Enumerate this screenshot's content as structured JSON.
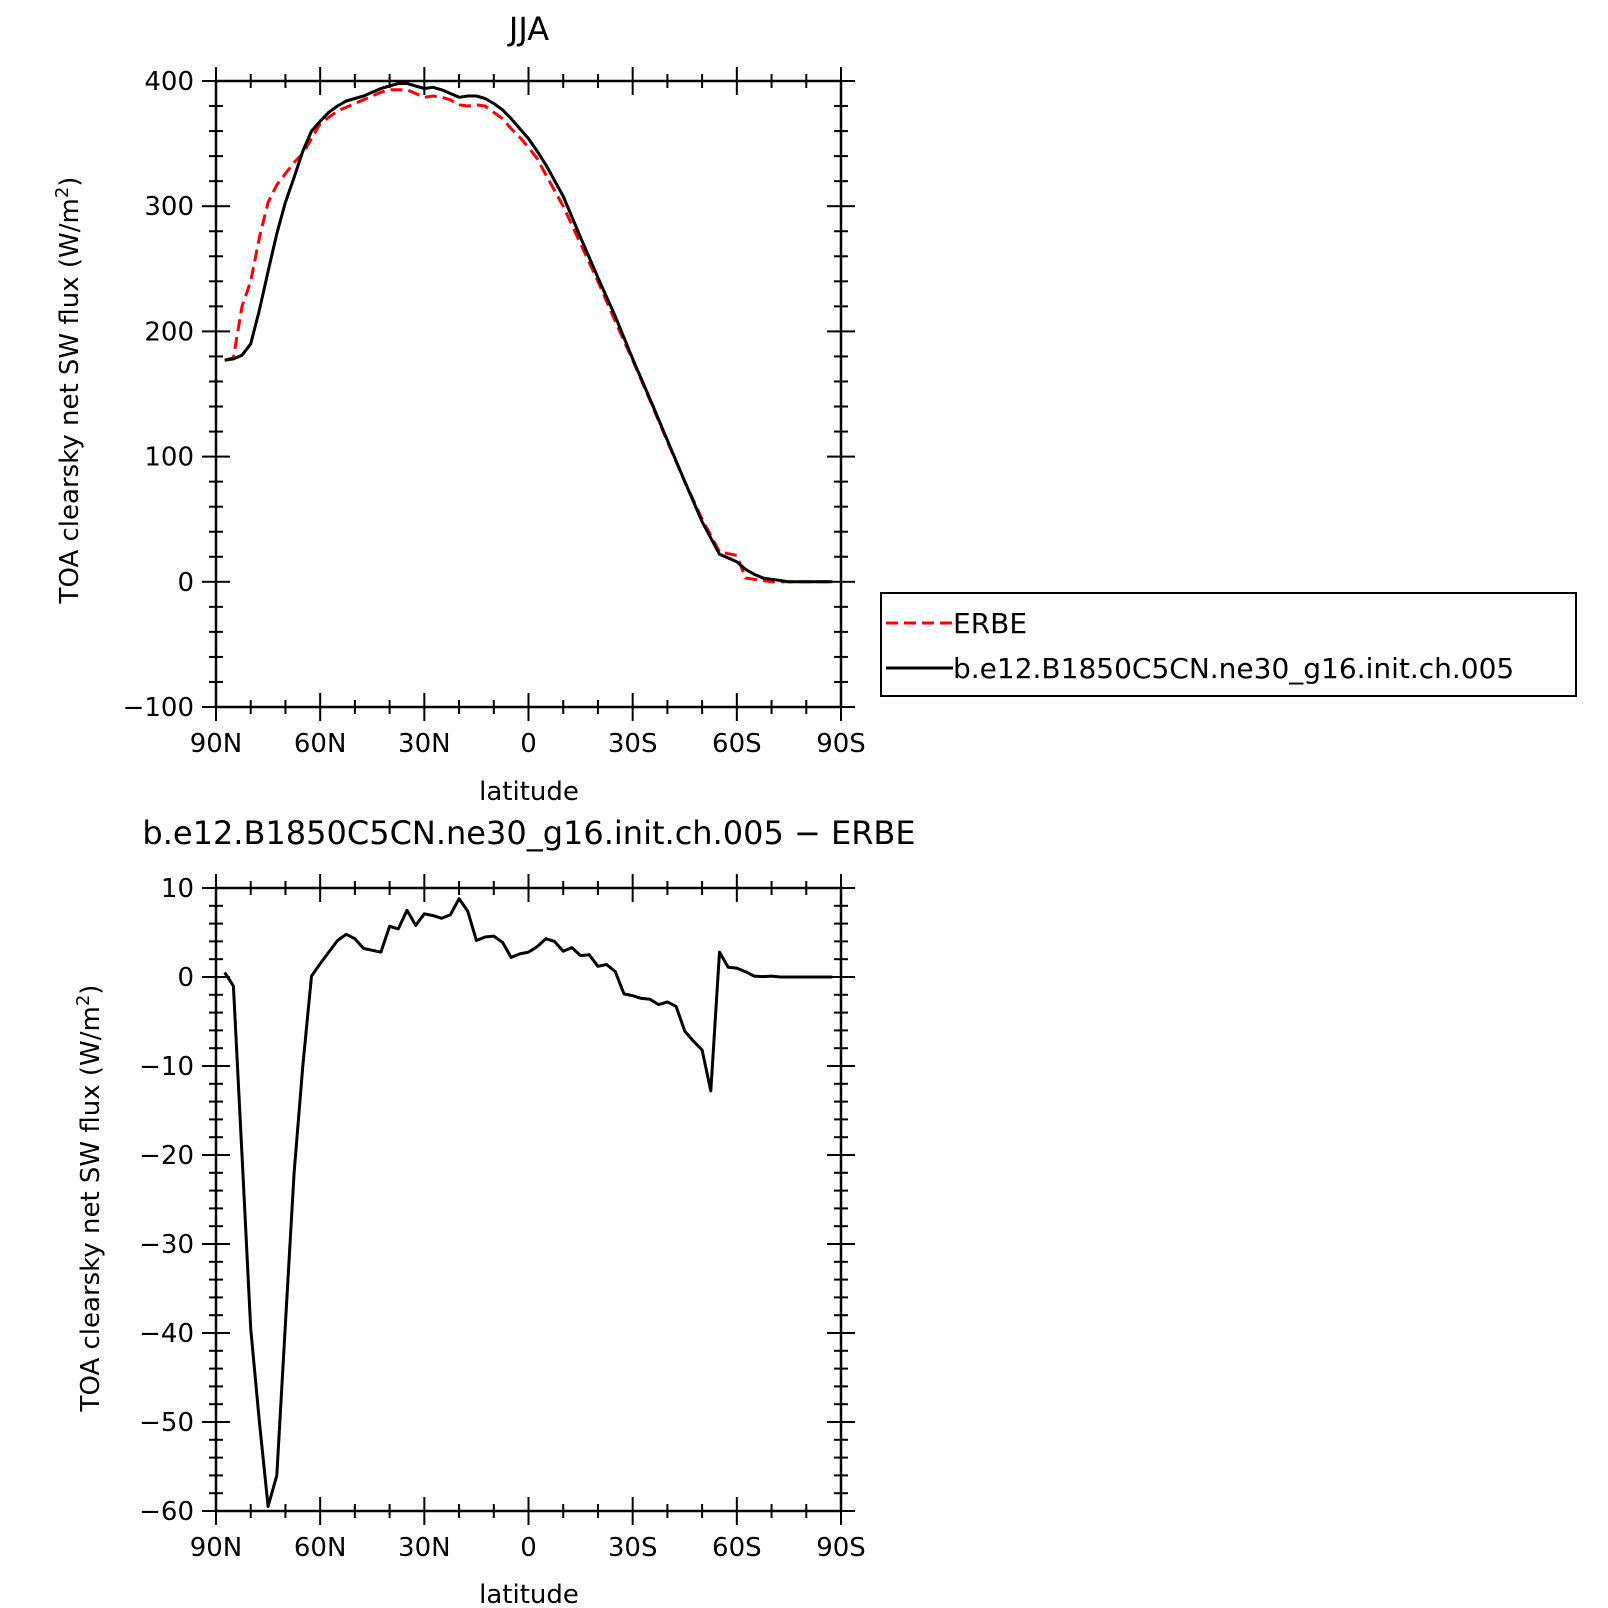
{
  "chart_data": [
    {
      "type": "line",
      "title": "JJA",
      "xlabel": "latitude",
      "ylabel": "TOA clearsky net SW flux (W/m²)",
      "xlim": [
        90,
        -90
      ],
      "ylim": [
        -100,
        400
      ],
      "x_ticks": [
        90,
        60,
        30,
        0,
        -30,
        -60,
        -90
      ],
      "x_tick_labels": [
        "90N",
        "60N",
        "30N",
        "0",
        "30S",
        "60S",
        "90S"
      ],
      "y_ticks": [
        -100,
        0,
        100,
        200,
        300,
        400
      ],
      "y_tick_labels": [
        "−100",
        "0",
        "100",
        "200",
        "300",
        "400"
      ],
      "legend": "right",
      "series": [
        {
          "name": "ERBE",
          "color": "#ff0000",
          "style": "dashed",
          "x": [
            87.5,
            85,
            82.5,
            80,
            77.5,
            75,
            72.5,
            70,
            67.5,
            65,
            62.5,
            60,
            57.5,
            55,
            52.5,
            50,
            47.5,
            45,
            42.5,
            40,
            37.5,
            35,
            32.5,
            30,
            27.5,
            25,
            22.5,
            20,
            17.5,
            15,
            12.5,
            10,
            7.5,
            5,
            2.5,
            0,
            -2.5,
            -5,
            -10,
            -15,
            -20,
            -25,
            -30,
            -35,
            -40,
            -45,
            -50,
            -55,
            -60,
            -62.5,
            -65,
            -67.5,
            -70,
            -72.5,
            -75,
            -80,
            -85,
            -87.5
          ],
          "y": [
            177,
            179,
            220,
            240,
            275,
            303,
            317,
            326,
            335,
            342,
            354,
            366,
            371,
            376,
            379,
            382,
            385,
            388,
            391,
            393,
            393,
            393,
            390,
            387,
            388,
            387,
            385,
            381,
            380,
            381,
            380,
            375,
            370,
            362,
            355,
            347,
            338,
            325,
            300,
            270,
            240,
            208,
            177,
            145,
            112,
            80,
            50,
            24,
            21,
            3,
            2,
            1,
            0,
            0,
            0,
            0,
            0,
            0
          ]
        },
        {
          "name": "b.e12.B1850C5CN.ne30_g16.init.ch.005",
          "color": "#000000",
          "style": "solid",
          "x": [
            87.5,
            85,
            82.5,
            80,
            77.5,
            75,
            72.5,
            70,
            67.5,
            65,
            62.5,
            60,
            57.5,
            55,
            52.5,
            50,
            47.5,
            45,
            42.5,
            40,
            37.5,
            35,
            32.5,
            30,
            27.5,
            25,
            22.5,
            20,
            17.5,
            15,
            12.5,
            10,
            7.5,
            5,
            2.5,
            0,
            -2.5,
            -5,
            -10,
            -15,
            -20,
            -25,
            -30,
            -35,
            -40,
            -45,
            -50,
            -55,
            -60,
            -62.5,
            -65,
            -67.5,
            -70,
            -72.5,
            -75,
            -80,
            -85,
            -87.5
          ],
          "y": [
            177,
            178,
            181,
            190,
            217,
            248,
            278,
            303,
            323,
            344,
            360,
            368,
            375,
            380,
            384,
            386,
            388,
            391,
            394,
            396,
            398,
            398,
            396,
            394,
            395,
            393,
            390,
            387,
            388,
            388,
            386,
            382,
            377,
            370,
            362,
            354,
            344,
            333,
            308,
            275,
            243,
            212,
            178,
            146,
            113,
            80,
            48,
            22,
            16,
            10,
            6,
            3,
            2,
            1,
            0,
            0,
            0,
            0
          ]
        }
      ]
    },
    {
      "type": "line",
      "title": "b.e12.B1850C5CN.ne30_g16.init.ch.005 − ERBE",
      "xlabel": "latitude",
      "ylabel": "TOA clearsky net SW flux (W/m²)",
      "xlim": [
        90,
        -90
      ],
      "ylim": [
        -60,
        10
      ],
      "x_ticks": [
        90,
        60,
        30,
        0,
        -30,
        -60,
        -90
      ],
      "x_tick_labels": [
        "90N",
        "60N",
        "30N",
        "0",
        "30S",
        "60S",
        "90S"
      ],
      "y_ticks": [
        -60,
        -50,
        -40,
        -30,
        -20,
        -10,
        0,
        10
      ],
      "y_tick_labels": [
        "−60",
        "−50",
        "−40",
        "−30",
        "−20",
        "−10",
        "0",
        "10"
      ],
      "series": [
        {
          "color": "#000000",
          "style": "solid",
          "x": [
            87.5,
            85,
            82.5,
            80,
            77.5,
            75,
            72.5,
            70,
            67.5,
            65,
            62.5,
            60,
            57.5,
            55,
            52.5,
            50,
            47.5,
            45,
            42.5,
            40,
            37.5,
            35,
            32.5,
            30,
            27.5,
            25,
            22.5,
            20,
            17.5,
            15,
            12.5,
            10,
            7.5,
            5,
            2.5,
            0,
            -2.5,
            -5,
            -7.5,
            -10,
            -12.5,
            -15,
            -17.5,
            -20,
            -22.5,
            -25,
            -27.5,
            -30,
            -32.5,
            -35,
            -37.5,
            -40,
            -42.5,
            -45,
            -47.5,
            -50,
            -52.5,
            -55,
            -57.5,
            -60,
            -62.5,
            -65,
            -67.5,
            -70,
            -72.5,
            -75,
            -77.5,
            -80,
            -82.5,
            -85,
            -87.5
          ],
          "y": [
            0.5,
            -1.0,
            -20.0,
            -39.5,
            -50.0,
            -59.5,
            -56.0,
            -39.0,
            -22.0,
            -10.0,
            0.1,
            1.5,
            2.8,
            4.1,
            4.8,
            4.3,
            3.2,
            3.0,
            2.8,
            5.7,
            5.4,
            7.5,
            5.8,
            7.1,
            6.9,
            6.6,
            7.0,
            8.8,
            7.4,
            4.1,
            4.5,
            4.6,
            3.9,
            2.2,
            2.6,
            2.8,
            3.4,
            4.3,
            4.0,
            2.9,
            3.3,
            2.4,
            2.5,
            1.2,
            1.4,
            0.6,
            -1.9,
            -2.1,
            -2.4,
            -2.5,
            -3.1,
            -2.8,
            -3.3,
            -6.1,
            -7.2,
            -8.2,
            -12.8,
            2.8,
            1.1,
            1.0,
            0.6,
            0.1,
            0.05,
            0.1,
            0.0,
            0.0,
            0.0,
            0.0,
            0.0,
            0.0,
            0.0
          ]
        }
      ]
    }
  ],
  "legend": {
    "items": [
      "ERBE",
      "b.e12.B1850C5CN.ne30_g16.init.ch.005"
    ]
  },
  "ylabel_main": "TOA clearsky net SW flux (W/m",
  "ylabel_sup": "2",
  "ylabel_tail": ")"
}
